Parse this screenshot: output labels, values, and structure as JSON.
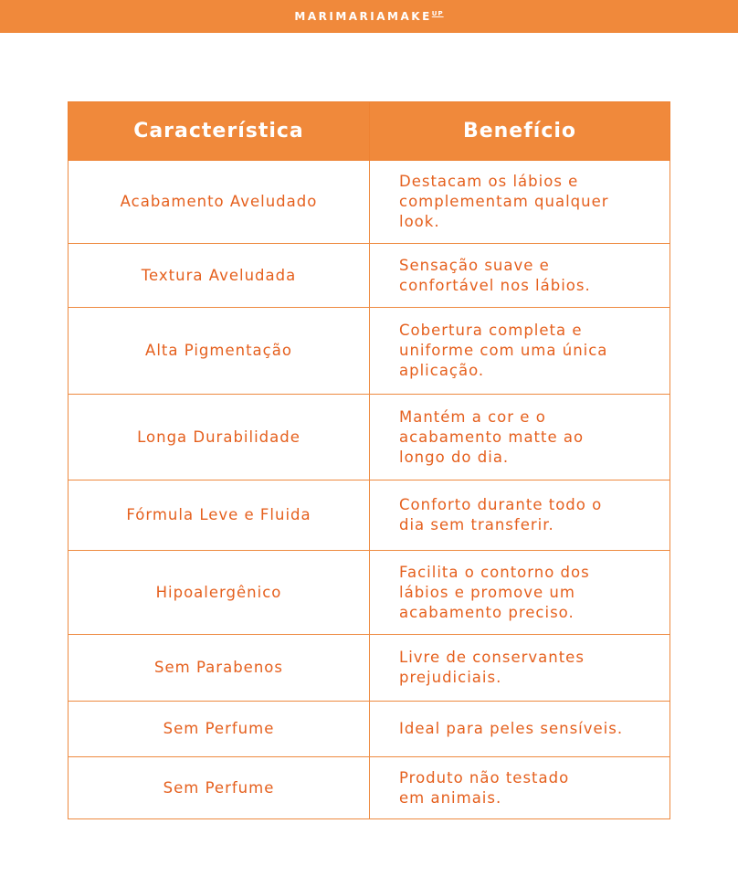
{
  "header": {
    "logo": "MARIMARIAMAKE",
    "logo_sup": "UP"
  },
  "table": {
    "columns": [
      "Característica",
      "Benefício"
    ],
    "rows": [
      {
        "feature": "Acabamento Aveludado",
        "benefit": "Destacam os lábios e\ncomplementam qualquer\nlook."
      },
      {
        "feature": "Textura Aveludada",
        "benefit": "Sensação suave e\nconfortável nos lábios."
      },
      {
        "feature": "Alta Pigmentação",
        "benefit": "Cobertura completa e\nuniforme com uma única\naplicação."
      },
      {
        "feature": "Longa Durabilidade",
        "benefit": "Mantém a cor e o\nacabamento matte ao\nlongo do dia."
      },
      {
        "feature": "Fórmula Leve e Fluida",
        "benefit": "Conforto durante todo o\ndia sem transferir."
      },
      {
        "feature": "Hipoalergênico",
        "benefit": "Facilita o contorno dos\nlábios e promove um\nacabamento preciso."
      },
      {
        "feature": "Sem Parabenos",
        "benefit": "Livre de conservantes\nprejudiciais."
      },
      {
        "feature": "Sem Perfume",
        "benefit": "Ideal para peles sensíveis."
      },
      {
        "feature": "Sem Perfume",
        "benefit": "Produto não testado\nem animais."
      }
    ]
  },
  "colors": {
    "accent": "#F0893B",
    "text": "#E5601E"
  }
}
